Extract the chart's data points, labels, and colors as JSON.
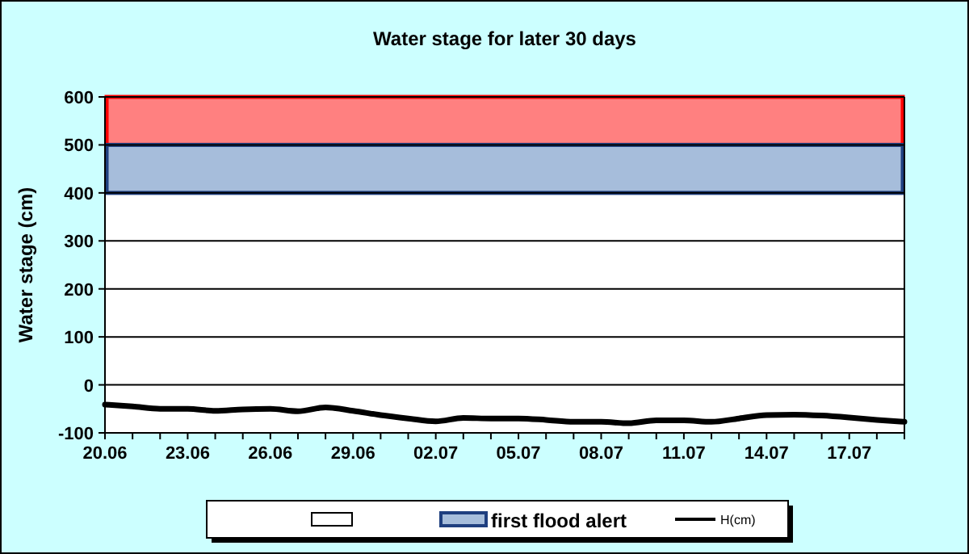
{
  "chart_data": {
    "type": "line",
    "title": "Water stage for later 30 days",
    "ylabel": "Water stage (cm)",
    "x": [
      "--06-20",
      "--06-21",
      "--06-22",
      "--06-23",
      "--06-24",
      "--06-25",
      "--06-26",
      "--06-27",
      "--06-28",
      "--06-29",
      "--06-30",
      "--07-01",
      "--07-02",
      "--07-03",
      "--07-04",
      "--07-05",
      "--07-06",
      "--07-07",
      "--07-08",
      "--07-09",
      "--07-10",
      "--07-11",
      "--07-12",
      "--07-13",
      "--07-14",
      "--07-15",
      "--07-16",
      "--07-17",
      "--07-18",
      "--07-19"
    ],
    "series": [
      {
        "name": "H(cm)",
        "color": "#000000",
        "values": [
          -41,
          -45,
          -50,
          -50,
          -54,
          -51,
          -50,
          -55,
          -47,
          -54,
          -63,
          -70,
          -76,
          -69,
          -70,
          -70,
          -73,
          -77,
          -77,
          -80,
          -74,
          -74,
          -77,
          -70,
          -63,
          -62,
          -64,
          -68,
          -73,
          -77
        ]
      }
    ],
    "xlim": [
      "--06-20",
      "--07-19"
    ],
    "xticks": [
      {
        "value": "--06-20",
        "label": "20.06"
      },
      {
        "value": "--06-21",
        "label": null
      },
      {
        "value": "--06-22",
        "label": null
      },
      {
        "value": "--06-23",
        "label": "23.06"
      },
      {
        "value": "--06-24",
        "label": null
      },
      {
        "value": "--06-25",
        "label": null
      },
      {
        "value": "--06-26",
        "label": "26.06"
      },
      {
        "value": "--06-27",
        "label": null
      },
      {
        "value": "--06-28",
        "label": null
      },
      {
        "value": "--06-29",
        "label": "29.06"
      },
      {
        "value": "--06-30",
        "label": null
      },
      {
        "value": "--07-01",
        "label": null
      },
      {
        "value": "--07-02",
        "label": "02.07"
      },
      {
        "value": "--07-03",
        "label": null
      },
      {
        "value": "--07-04",
        "label": null
      },
      {
        "value": "--07-05",
        "label": "05.07"
      },
      {
        "value": "--07-06",
        "label": null
      },
      {
        "value": "--07-07",
        "label": null
      },
      {
        "value": "--07-08",
        "label": "08.07"
      },
      {
        "value": "--07-09",
        "label": null
      },
      {
        "value": "--07-10",
        "label": null
      },
      {
        "value": "--07-11",
        "label": "11.07"
      },
      {
        "value": "--07-12",
        "label": null
      },
      {
        "value": "--07-13",
        "label": null
      },
      {
        "value": "--07-14",
        "label": "14.07"
      },
      {
        "value": "--07-15",
        "label": null
      },
      {
        "value": "--07-16",
        "label": null
      },
      {
        "value": "--07-17",
        "label": "17.07"
      },
      {
        "value": "--07-18",
        "label": null
      },
      {
        "value": "--07-19",
        "label": null
      }
    ],
    "ylim": [
      -100,
      600
    ],
    "yticks": [
      -100,
      0,
      100,
      200,
      300,
      400,
      500,
      600
    ],
    "bands": [
      {
        "axis": "y",
        "from": 500,
        "to": 600,
        "color": "#ff8080",
        "label": null
      },
      {
        "axis": "y",
        "from": 400,
        "to": 500,
        "color": "#a6bddb",
        "label": "first flood alert"
      }
    ],
    "grid": "y",
    "legend": "bottom",
    "line_style": "solid",
    "marker": "none"
  }
}
